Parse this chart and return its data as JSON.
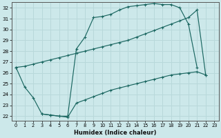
{
  "xlabel": "Humidex (Indice chaleur)",
  "bg_color": "#cce8ea",
  "line_color": "#1a6660",
  "grid_color": "#b8d8da",
  "xlim": [
    -0.5,
    23.5
  ],
  "ylim": [
    21.6,
    32.5
  ],
  "xticks": [
    0,
    1,
    2,
    3,
    4,
    5,
    6,
    7,
    8,
    9,
    10,
    11,
    12,
    13,
    14,
    15,
    16,
    17,
    18,
    19,
    20,
    21,
    22,
    23
  ],
  "yticks": [
    22,
    23,
    24,
    25,
    26,
    27,
    28,
    29,
    30,
    31,
    32
  ],
  "curve_upper_x": [
    0,
    1,
    2,
    3,
    4,
    5,
    6,
    7,
    8,
    9,
    10,
    11,
    12,
    13,
    14,
    15,
    16,
    17,
    18,
    19,
    20,
    21
  ],
  "curve_upper_y": [
    26.5,
    24.7,
    23.7,
    22.2,
    22.1,
    22.0,
    22.0,
    28.2,
    29.3,
    31.1,
    31.2,
    31.4,
    31.8,
    32.1,
    32.2,
    32.3,
    32.4,
    32.3,
    32.3,
    32.0,
    30.5,
    26.5
  ],
  "curve_mid_x": [
    0,
    1,
    2,
    3,
    4,
    5,
    6,
    7,
    8,
    9,
    10,
    11,
    12,
    13,
    14,
    15,
    16,
    17,
    18,
    19,
    20,
    21,
    22
  ],
  "curve_mid_y": [
    26.5,
    26.6,
    26.8,
    27.0,
    27.2,
    27.4,
    27.6,
    27.8,
    28.0,
    28.2,
    28.4,
    28.6,
    28.8,
    29.0,
    29.3,
    29.6,
    29.9,
    30.2,
    30.5,
    30.8,
    31.1,
    31.8,
    25.8
  ],
  "curve_low_x": [
    3,
    4,
    5,
    6,
    7,
    8,
    9,
    10,
    11,
    12,
    13,
    14,
    15,
    16,
    17,
    18,
    19,
    20,
    21,
    22
  ],
  "curve_low_y": [
    22.2,
    22.1,
    22.0,
    21.9,
    23.2,
    23.5,
    23.8,
    24.1,
    24.4,
    24.6,
    24.8,
    25.0,
    25.2,
    25.4,
    25.6,
    25.8,
    25.9,
    26.0,
    26.1,
    25.8
  ]
}
